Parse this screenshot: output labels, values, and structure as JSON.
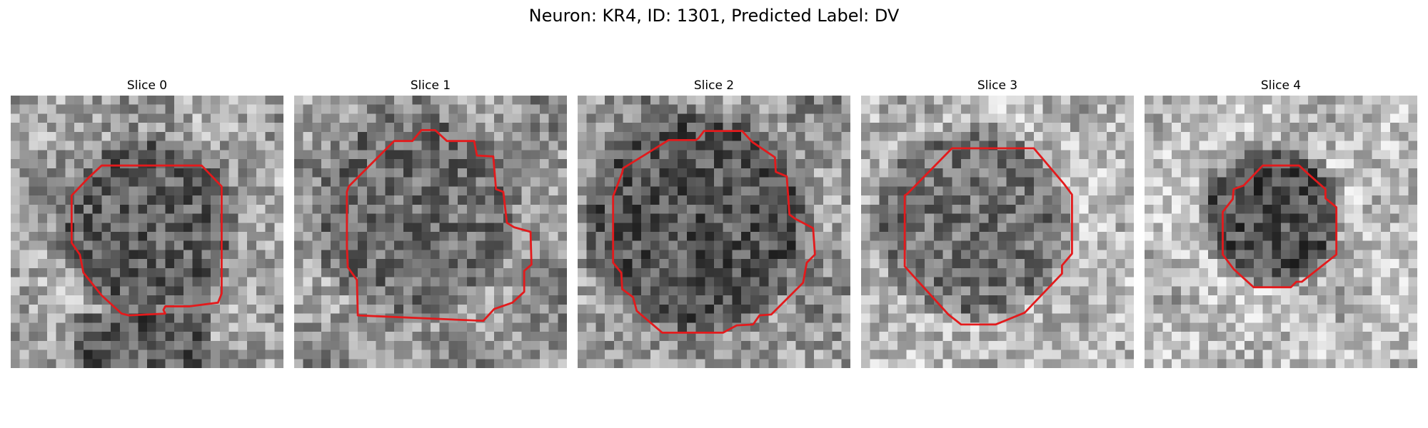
{
  "figure": {
    "title": "Neuron: KR4, ID: 1301, Predicted Label: DV"
  },
  "panels": [
    {
      "title": "Slice 0"
    },
    {
      "title": "Slice 1"
    },
    {
      "title": "Slice 2"
    },
    {
      "title": "Slice 3"
    },
    {
      "title": "Slice 4"
    }
  ],
  "colors": {
    "contour": "#e31a1c",
    "background": "#ffffff"
  }
}
